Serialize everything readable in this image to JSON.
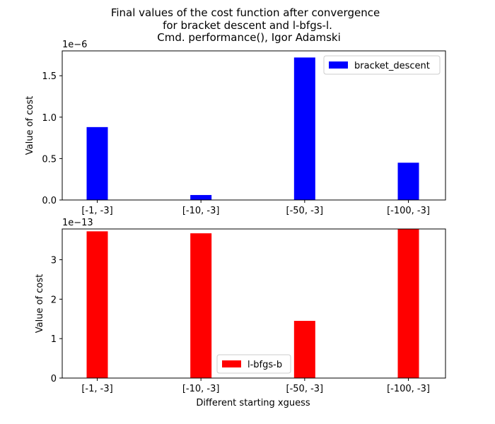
{
  "figure": {
    "title_lines": [
      "Final values of the cost function after convergence",
      "for bracket descent and l-bfgs-l.",
      "Cmd. performance(), Igor Adamski"
    ],
    "xlabel": "Different starting xguess"
  },
  "chart_data": [
    {
      "type": "bar",
      "categories": [
        "[-1, -3]",
        "[-10, -3]",
        "[-50, -3]",
        "[-100, -3]"
      ],
      "series": [
        {
          "name": "bracket_descent",
          "values": [
            8.8e-07,
            6e-08,
            1.72e-06,
            4.5e-07
          ],
          "color": "#0000ff"
        }
      ],
      "ylabel": "Value of cost",
      "offset_text": "1e−6",
      "offset_scale": 1e-06,
      "ylim": [
        0,
        1.8e-06
      ],
      "yticks": [
        0,
        5e-07,
        1e-06,
        1.5e-06
      ],
      "ytick_labels": [
        "0.0",
        "0.5",
        "1.0",
        "1.5"
      ],
      "legend": "top-right",
      "grid": false
    },
    {
      "type": "bar",
      "categories": [
        "[-1, -3]",
        "[-10, -3]",
        "[-50, -3]",
        "[-100, -3]"
      ],
      "series": [
        {
          "name": "l-bfgs-b",
          "values": [
            3.72e-13,
            3.67e-13,
            1.45e-13,
            3.78e-13
          ],
          "color": "#ff0000"
        }
      ],
      "ylabel": "Value of cost",
      "offset_text": "1e−13",
      "offset_scale": 1e-13,
      "ylim": [
        0,
        3.78e-13
      ],
      "yticks": [
        0,
        1e-13,
        2e-13,
        3e-13
      ],
      "ytick_labels": [
        "0",
        "1",
        "2",
        "3"
      ],
      "legend": "bottom-center",
      "grid": false
    }
  ]
}
